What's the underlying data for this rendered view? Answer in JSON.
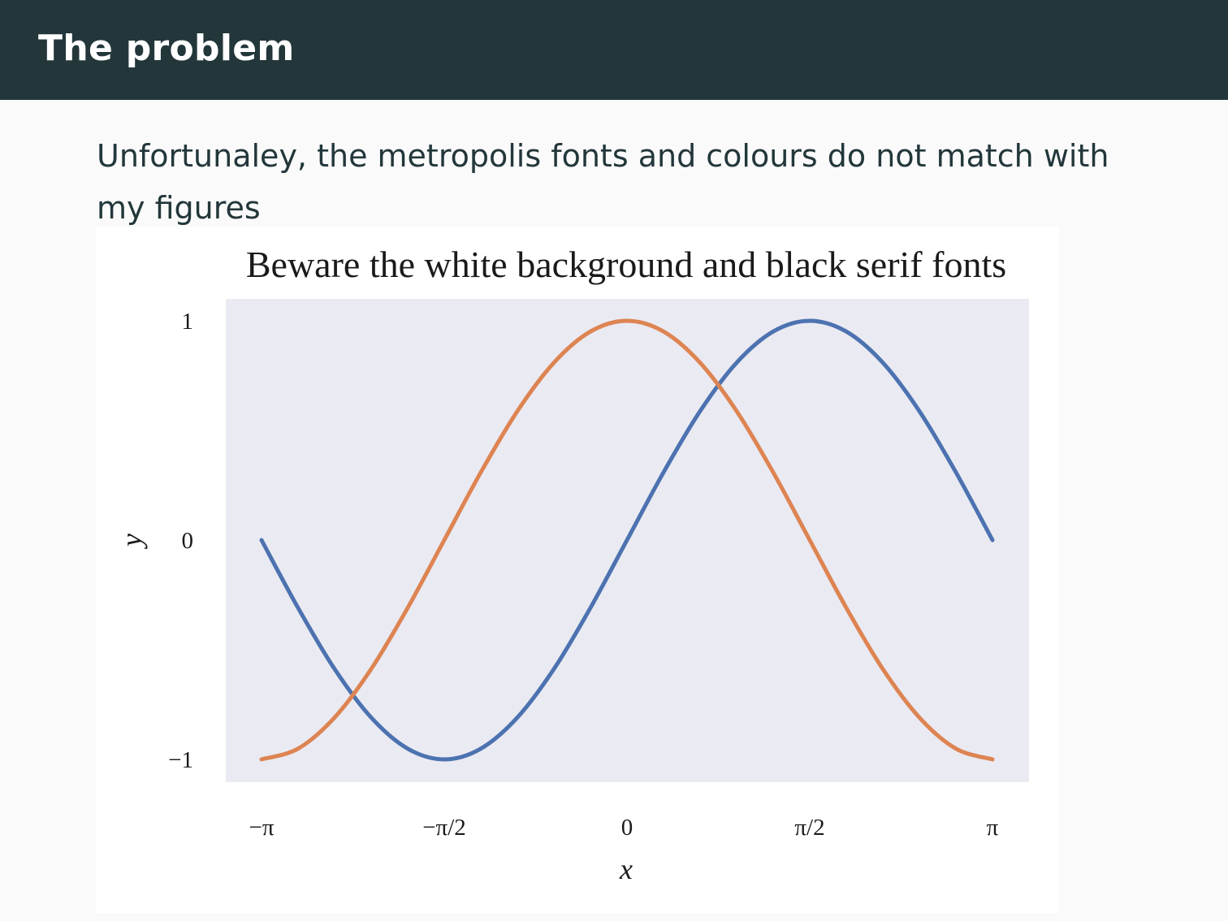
{
  "header": {
    "title": "The problem"
  },
  "body": {
    "text": "Unfortunaley, the metropolis fonts and colours do not match with my figures"
  },
  "colors": {
    "header_bg": "#23373b",
    "page_bg": "#fafafa",
    "plot_bg": "#eaeaf2",
    "series_blue": "#4c72b0",
    "series_orange": "#dd8452"
  },
  "chart_data": {
    "type": "line",
    "title": "Beware the white background and black serif fonts",
    "xlabel": "x",
    "ylabel": "y",
    "xlim": [
      -3.14159,
      3.14159
    ],
    "ylim": [
      -1,
      1
    ],
    "xticks": [
      {
        "value": -3.14159,
        "label": "−π"
      },
      {
        "value": -1.5708,
        "label": "−π/2"
      },
      {
        "value": 0,
        "label": "0"
      },
      {
        "value": 1.5708,
        "label": "π/2"
      },
      {
        "value": 3.14159,
        "label": "π"
      }
    ],
    "yticks": [
      {
        "value": 1,
        "label": "1"
      },
      {
        "value": 0,
        "label": "0"
      },
      {
        "value": -1,
        "label": "−1"
      }
    ],
    "grid": false,
    "series": [
      {
        "color": "#4c72b0",
        "x": [
          -3.1416,
          -2.8274,
          -2.5133,
          -2.1991,
          -1.885,
          -1.5708,
          -1.2566,
          -0.9425,
          -0.6283,
          -0.3142,
          0,
          0.3142,
          0.6283,
          0.9425,
          1.2566,
          1.5708,
          1.885,
          2.1991,
          2.5133,
          2.8274,
          3.1416
        ],
        "y": [
          0,
          -0.309,
          -0.588,
          -0.809,
          -0.951,
          -1,
          -0.951,
          -0.809,
          -0.588,
          -0.309,
          0,
          0.309,
          0.588,
          0.809,
          0.951,
          1,
          0.951,
          0.809,
          0.588,
          0.309,
          0
        ]
      },
      {
        "color": "#dd8452",
        "x": [
          -3.1416,
          -2.8274,
          -2.5133,
          -2.1991,
          -1.885,
          -1.5708,
          -1.2566,
          -0.9425,
          -0.6283,
          -0.3142,
          0,
          0.3142,
          0.6283,
          0.9425,
          1.2566,
          1.5708,
          1.885,
          2.1991,
          2.5133,
          2.8274,
          3.1416
        ],
        "y": [
          -1,
          -0.951,
          -0.809,
          -0.588,
          -0.309,
          0,
          0.309,
          0.588,
          0.809,
          0.951,
          1,
          0.951,
          0.809,
          0.588,
          0.309,
          0,
          -0.309,
          -0.588,
          -0.809,
          -0.951,
          -1
        ]
      }
    ]
  }
}
